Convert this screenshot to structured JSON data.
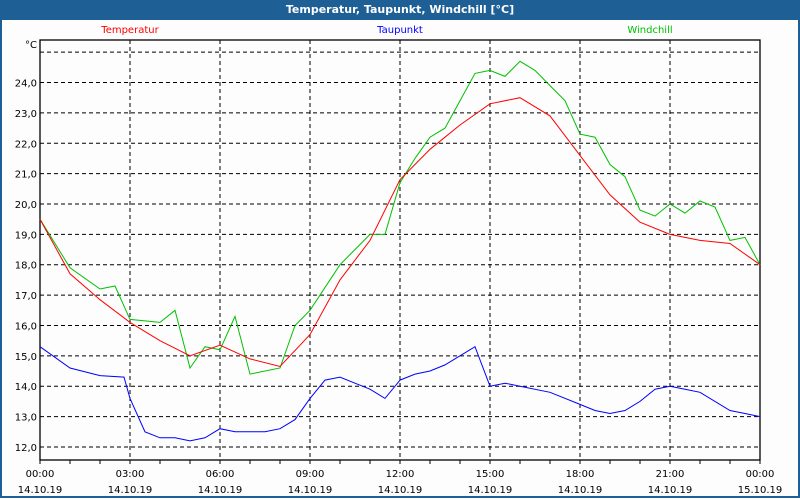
{
  "window_title": "Temperatur, Taupunkt, Windchill [°C]",
  "chart_data": {
    "type": "line",
    "title": "Temperatur, Taupunkt, Windchill [°C]",
    "ylabel": "°C",
    "ylim": [
      11.57,
      25.4
    ],
    "xlim": [
      0,
      24
    ],
    "grid": true,
    "yticks": [
      12,
      13,
      14,
      15,
      16,
      17,
      18,
      19,
      20,
      21,
      22,
      23,
      24
    ],
    "ytick_labels": [
      "12,0",
      "13,0",
      "14,0",
      "15,0",
      "16,0",
      "17,0",
      "18,0",
      "19,0",
      "20,0",
      "21,0",
      "22,0",
      "23,0",
      "24,0"
    ],
    "xticks": [
      0,
      3,
      6,
      9,
      12,
      15,
      18,
      21,
      24
    ],
    "xtick_labels": [
      [
        "00:00",
        "14.10.19"
      ],
      [
        "03:00",
        "14.10.19"
      ],
      [
        "06:00",
        "14.10.19"
      ],
      [
        "09:00",
        "14.10.19"
      ],
      [
        "12:00",
        "14.10.19"
      ],
      [
        "15:00",
        "14.10.19"
      ],
      [
        "18:00",
        "14.10.19"
      ],
      [
        "21:00",
        "14.10.19"
      ],
      [
        "00:00",
        "15.10.19"
      ]
    ],
    "series": [
      {
        "name": "Temperatur",
        "color": "#ff0000",
        "legend_pos": "top-left",
        "x": [
          0,
          1,
          2,
          3,
          4,
          5,
          6,
          7,
          8,
          9,
          10,
          11,
          12,
          13,
          14,
          15,
          16,
          17,
          18,
          19,
          20,
          21,
          22,
          23,
          24
        ],
        "y": [
          19.5,
          17.7,
          16.85,
          16.1,
          15.5,
          15.0,
          15.35,
          14.9,
          14.65,
          15.7,
          17.5,
          18.8,
          20.8,
          21.8,
          22.6,
          23.3,
          23.5,
          22.9,
          21.6,
          20.3,
          19.4,
          19.0,
          18.8,
          18.7,
          18.0
        ]
      },
      {
        "name": "Taupunkt",
        "color": "#0000ff",
        "legend_pos": "top-center",
        "x": [
          0,
          1,
          2,
          2.8,
          3,
          3.5,
          4,
          4.5,
          5,
          5.5,
          6,
          6.5,
          7,
          7.5,
          8,
          8.5,
          9,
          9.5,
          10,
          10.5,
          11,
          11.5,
          12,
          12.5,
          13,
          13.5,
          14,
          14.5,
          15,
          15.5,
          16,
          17,
          18,
          18.5,
          19,
          19.5,
          20,
          20.5,
          21,
          21.5,
          22,
          23,
          23.5,
          24
        ],
        "y": [
          15.3,
          14.6,
          14.35,
          14.3,
          13.6,
          12.5,
          12.3,
          12.3,
          12.2,
          12.3,
          12.6,
          12.5,
          12.5,
          12.5,
          12.6,
          12.9,
          13.6,
          14.2,
          14.3,
          14.1,
          13.9,
          13.6,
          14.2,
          14.4,
          14.5,
          14.7,
          15.0,
          15.3,
          14.0,
          14.1,
          14.0,
          13.8,
          13.4,
          13.2,
          13.1,
          13.2,
          13.5,
          13.9,
          14.0,
          13.9,
          13.8,
          13.2,
          13.1,
          13.0
        ]
      },
      {
        "name": "Windchill",
        "color": "#00c000",
        "legend_pos": "top-right",
        "x": [
          0,
          1,
          2,
          2.5,
          3,
          4,
          4.5,
          5,
          5.5,
          6,
          6.5,
          7,
          8,
          8.5,
          9,
          10,
          11,
          11.5,
          12,
          12.5,
          13,
          13.5,
          14,
          14.5,
          15,
          15.5,
          16,
          16.5,
          17,
          17.5,
          18,
          18.5,
          19,
          19.5,
          20,
          20.5,
          21,
          21.5,
          22,
          22.5,
          23,
          23.5,
          24
        ],
        "y": [
          19.5,
          17.9,
          17.2,
          17.3,
          16.2,
          16.1,
          16.5,
          14.6,
          15.3,
          15.2,
          16.3,
          14.4,
          14.6,
          16.0,
          16.5,
          18.0,
          19.0,
          19.0,
          20.7,
          21.5,
          22.2,
          22.5,
          23.4,
          24.3,
          24.4,
          24.2,
          24.7,
          24.4,
          23.9,
          23.4,
          22.3,
          22.2,
          21.3,
          20.9,
          19.8,
          19.6,
          20.0,
          19.7,
          20.1,
          19.9,
          18.8,
          18.9,
          18.0
        ]
      }
    ]
  }
}
